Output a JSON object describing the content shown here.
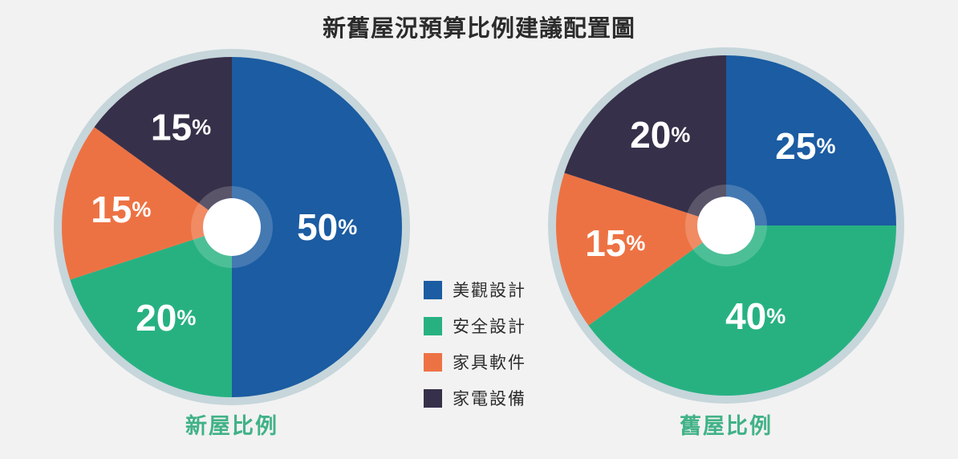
{
  "page": {
    "title": "新舊屋況預算比例建議配置圖",
    "background_color": "#f2f2f2",
    "title_color": "#2b2b2b",
    "caption_color": "#41b287"
  },
  "legend": {
    "items": [
      {
        "label": "美觀設計",
        "color": "#1b5ca2"
      },
      {
        "label": "安全設計",
        "color": "#27b181"
      },
      {
        "label": "家具軟件",
        "color": "#ed7243"
      },
      {
        "label": "家電設備",
        "color": "#37304a"
      }
    ]
  },
  "chart_data": [
    {
      "type": "pie",
      "title": "新屋比例",
      "categories": [
        "美觀設計",
        "安全設計",
        "家具軟件",
        "家電設備"
      ],
      "values": [
        50,
        20,
        15,
        15
      ],
      "labels": [
        "50%",
        "20%",
        "15%",
        "15%"
      ],
      "colors": [
        "#1b5ca2",
        "#27b181",
        "#ed7243",
        "#37304a"
      ],
      "start_angle_deg": 0,
      "direction": "clockwise",
      "donut_hole": true,
      "hole_color": "#ffffff",
      "outer_ring_color": "#c6d6db",
      "label_color": "#ffffff",
      "legend_position": "right-center-shared"
    },
    {
      "type": "pie",
      "title": "舊屋比例",
      "categories": [
        "美觀設計",
        "安全設計",
        "家具軟件",
        "家電設備"
      ],
      "values": [
        25,
        40,
        15,
        20
      ],
      "labels": [
        "25%",
        "40%",
        "15%",
        "20%"
      ],
      "colors": [
        "#1b5ca2",
        "#27b181",
        "#ed7243",
        "#37304a"
      ],
      "start_angle_deg": 0,
      "direction": "clockwise",
      "donut_hole": true,
      "hole_color": "#ffffff",
      "outer_ring_color": "#c6d6db",
      "label_color": "#ffffff",
      "legend_position": "left-center-shared"
    }
  ]
}
